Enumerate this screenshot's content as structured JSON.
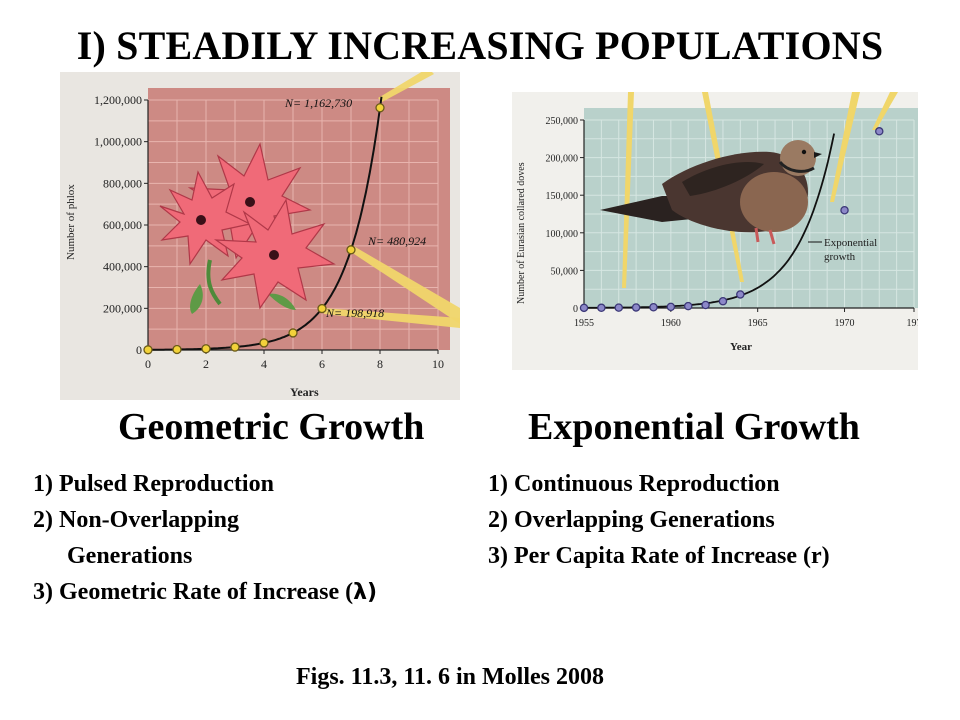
{
  "title": "I) STEADILY INCREASING POPULATIONS",
  "colors": {
    "left_plot_bg": "#cd8a84",
    "right_plot_bg": "#b9d1cb",
    "curve": "#111111",
    "point_yellow": "#f2d23a",
    "point_purple": "#8c88c8",
    "spike": "#f0d66a"
  },
  "left_chart": {
    "ylabel": "Number of phlox",
    "xlabel": "Years",
    "annotations": [
      "N= 1,162,730",
      "N= 480,924",
      "N= 198,918"
    ]
  },
  "right_chart": {
    "ylabel": "Number of Eurasian collared doves",
    "xlabel": "Year",
    "curve_label_line1": "Exponential",
    "curve_label_line2": "growth"
  },
  "geometric": {
    "heading": "Geometric Growth",
    "items": [
      "1) Pulsed Reproduction",
      "2) Non-Overlapping",
      "Generations",
      "3) Geometric Rate of Increase ("
    ],
    "lambda_symbol": "λ)"
  },
  "exponential": {
    "heading": "Exponential Growth",
    "items": [
      "1) Continuous  Reproduction",
      "2) Overlapping Generations",
      "3) Per Capita Rate of Increase (r)"
    ]
  },
  "citation": "Figs. 11.3, 11. 6 in Molles 2008",
  "chart_data": [
    {
      "type": "scatter",
      "xlabel": "Years",
      "ylabel": "Number of phlox",
      "xlim": [
        0,
        10
      ],
      "ylim": [
        0,
        1200000
      ],
      "x_ticks": [
        "0",
        "2",
        "4",
        "6",
        "8",
        "10"
      ],
      "y_ticks": [
        "0",
        "200,000",
        "400,000",
        "600,000",
        "800,000",
        "1,000,000",
        "1,200,000"
      ],
      "x": [
        0,
        1,
        2,
        3,
        4,
        5,
        6,
        7,
        8
      ],
      "values": [
        996,
        2500,
        6000,
        14000,
        34000,
        82000,
        198918,
        480924,
        1162730
      ],
      "grid": true
    },
    {
      "type": "scatter",
      "xlabel": "Year",
      "ylabel": "Number of Eurasian collared doves",
      "xlim": [
        1955,
        1974
      ],
      "ylim": [
        0,
        250000
      ],
      "x_ticks": [
        "1955",
        "1960",
        "1965",
        "1970",
        "197"
      ],
      "y_ticks": [
        "0",
        "50,000",
        "100,000",
        "150,000",
        "200,000",
        "250,000"
      ],
      "x": [
        1955,
        1956,
        1957,
        1958,
        1959,
        1960,
        1961,
        1962,
        1963,
        1964,
        1970,
        1972
      ],
      "values": [
        200,
        300,
        500,
        700,
        1000,
        1500,
        2500,
        4000,
        9000,
        18000,
        130000,
        235000
      ],
      "grid": true
    }
  ]
}
